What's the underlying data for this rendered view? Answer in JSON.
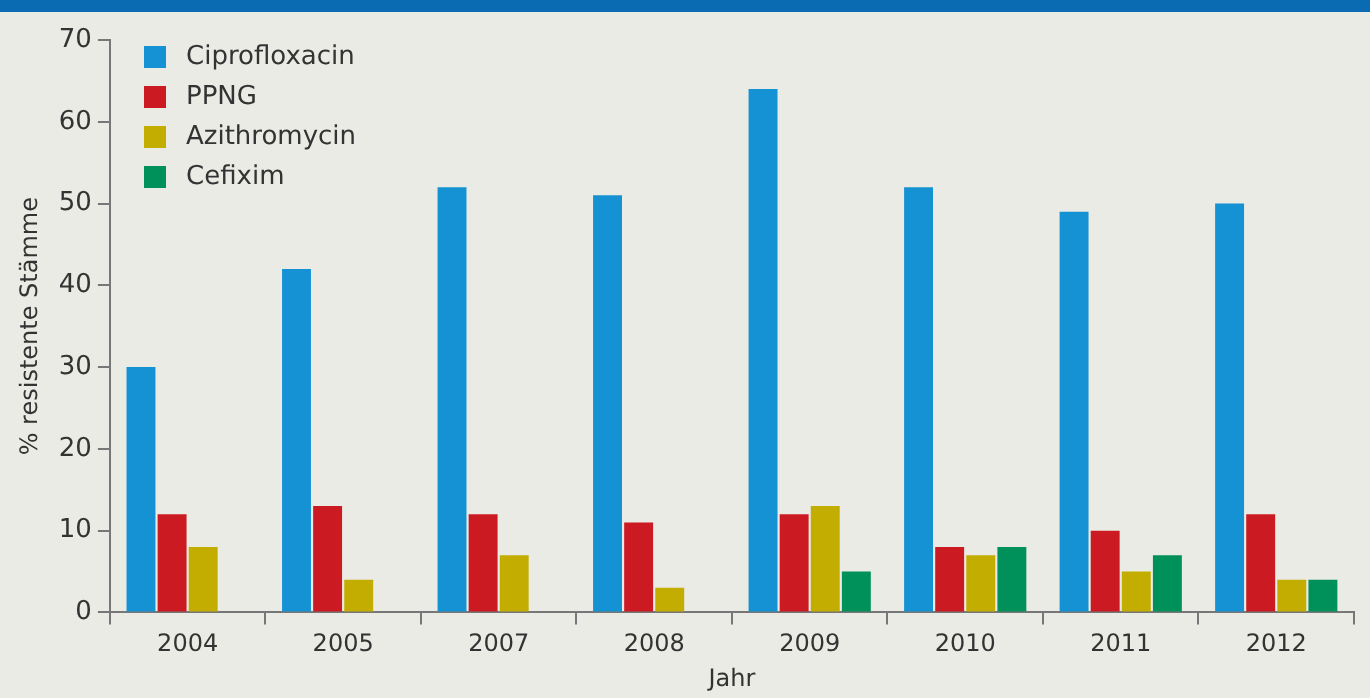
{
  "chart_data": {
    "type": "bar",
    "xlabel": "Jahr",
    "ylabel": "% resistente Stämme",
    "categories": [
      "2004",
      "2005",
      "2007",
      "2008",
      "2009",
      "2010",
      "2011",
      "2012"
    ],
    "series": [
      {
        "name": "Ciprofloxacin",
        "color": "#1592d3",
        "values": [
          30,
          42,
          52,
          51,
          64,
          52,
          49,
          50
        ]
      },
      {
        "name": "PPNG",
        "color": "#cc1a22",
        "values": [
          12,
          13,
          12,
          11,
          12,
          8,
          10,
          12
        ]
      },
      {
        "name": "Azithromycin",
        "color": "#c3ad00",
        "values": [
          8,
          4,
          7,
          3,
          13,
          7,
          5,
          4
        ]
      },
      {
        "name": "Cefixim",
        "color": "#00905a",
        "values": [
          null,
          null,
          null,
          null,
          5,
          8,
          7,
          4
        ]
      }
    ],
    "ylim": [
      0,
      70
    ],
    "yticks": [
      0,
      10,
      20,
      30,
      40,
      50,
      60,
      70
    ],
    "grid": false,
    "legend": "top left"
  }
}
